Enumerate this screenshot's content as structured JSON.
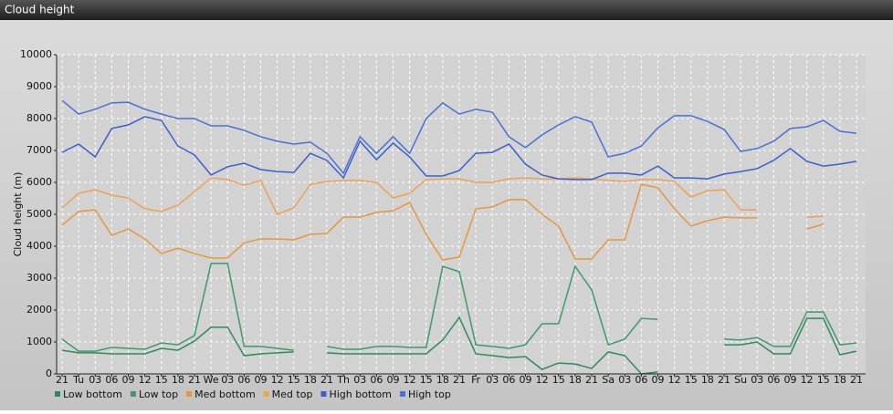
{
  "chart_data": {
    "type": "line",
    "title": "Cloud height",
    "y_label": "Cloud height (m)",
    "categories": [
      "21",
      "Tu",
      "03",
      "06",
      "09",
      "12",
      "15",
      "18",
      "21",
      "We",
      "03",
      "06",
      "09",
      "12",
      "15",
      "18",
      "21",
      "Th",
      "03",
      "06",
      "09",
      "12",
      "15",
      "18",
      "21",
      "Fr",
      "03",
      "06",
      "09",
      "12",
      "15",
      "18",
      "21",
      "Sa",
      "03",
      "06",
      "09",
      "12",
      "15",
      "18",
      "21",
      "Su",
      "03",
      "06",
      "09",
      "12",
      "15",
      "18",
      "21"
    ],
    "ylim": [
      0,
      10000
    ],
    "yticks": [
      0,
      1000,
      2000,
      3000,
      4000,
      5000,
      6000,
      7000,
      8000,
      9000,
      10000
    ],
    "grid": true,
    "legend": "bottom",
    "series": [
      {
        "name": "Low bottom",
        "color": "#2e8b57",
        "values": [
          740,
          660,
          660,
          630,
          630,
          630,
          800,
          740,
          1030,
          1460,
          1460,
          570,
          630,
          660,
          690,
          null,
          660,
          630,
          630,
          630,
          630,
          630,
          630,
          1060,
          1770,
          630,
          570,
          510,
          540,
          140,
          340,
          310,
          170,
          690,
          570,
          0,
          60,
          null,
          null,
          null,
          910,
          910,
          1000,
          630,
          630,
          1740,
          1740,
          600,
          710
        ]
      },
      {
        "name": "Low top",
        "color": "#3d9a6c",
        "values": [
          1090,
          710,
          710,
          830,
          800,
          770,
          970,
          910,
          1200,
          3460,
          3460,
          860,
          860,
          800,
          740,
          null,
          860,
          770,
          770,
          860,
          860,
          830,
          830,
          3370,
          3200,
          910,
          860,
          800,
          910,
          1570,
          1570,
          3370,
          2630,
          910,
          1090,
          1740,
          1710,
          null,
          null,
          null,
          1090,
          1060,
          1140,
          860,
          860,
          1940,
          1940,
          910,
          970
        ]
      },
      {
        "name": "Med bottom",
        "color": "#e8963c",
        "values": [
          4660,
          5090,
          5140,
          4340,
          4540,
          4230,
          3770,
          3940,
          3770,
          3630,
          3630,
          4110,
          4230,
          4230,
          4200,
          4370,
          4400,
          4910,
          4910,
          5060,
          5110,
          5370,
          4370,
          3570,
          3660,
          5170,
          5230,
          5460,
          5460,
          5000,
          4630,
          3600,
          3600,
          4200,
          4200,
          5940,
          5830,
          5170,
          4630,
          4800,
          4910,
          4890,
          4890,
          null,
          null,
          4540,
          4690,
          null,
          null
        ]
      },
      {
        "name": "Med top",
        "color": "#f0a050",
        "values": [
          5200,
          5660,
          5770,
          5600,
          5510,
          5170,
          5090,
          5290,
          5710,
          6140,
          6090,
          5910,
          6060,
          5000,
          5200,
          5940,
          6030,
          6060,
          6060,
          6000,
          5510,
          5660,
          6090,
          6110,
          6110,
          6000,
          6000,
          6110,
          6140,
          6110,
          6110,
          6140,
          6110,
          6060,
          6030,
          6090,
          6090,
          6030,
          5540,
          5740,
          5770,
          5140,
          5140,
          null,
          null,
          4910,
          4940,
          null,
          null
        ]
      },
      {
        "name": "High bottom",
        "color": "#3a5fcd",
        "values": [
          6940,
          7200,
          6800,
          7690,
          7800,
          8060,
          7940,
          7140,
          6860,
          6230,
          6490,
          6600,
          6400,
          6340,
          6310,
          6910,
          6690,
          6140,
          7290,
          6710,
          7230,
          6800,
          6200,
          6200,
          6370,
          6910,
          6940,
          7200,
          6570,
          6230,
          6110,
          6090,
          6090,
          6290,
          6290,
          6230,
          6510,
          6140,
          6140,
          6110,
          6260,
          6340,
          6430,
          6690,
          7060,
          6660,
          6510,
          6570,
          6660
        ]
      },
      {
        "name": "High top",
        "color": "#4a70d8",
        "values": [
          8570,
          8140,
          8290,
          8490,
          8510,
          8290,
          8140,
          8000,
          8000,
          7770,
          7770,
          7630,
          7430,
          7290,
          7200,
          7260,
          6910,
          6290,
          7430,
          6910,
          7430,
          6910,
          8000,
          8490,
          8140,
          8290,
          8200,
          7430,
          7090,
          7490,
          7800,
          8060,
          7890,
          6800,
          6910,
          7140,
          7710,
          8090,
          8090,
          7910,
          7660,
          6970,
          7060,
          7290,
          7690,
          7740,
          7940,
          7600,
          7540
        ]
      }
    ]
  }
}
